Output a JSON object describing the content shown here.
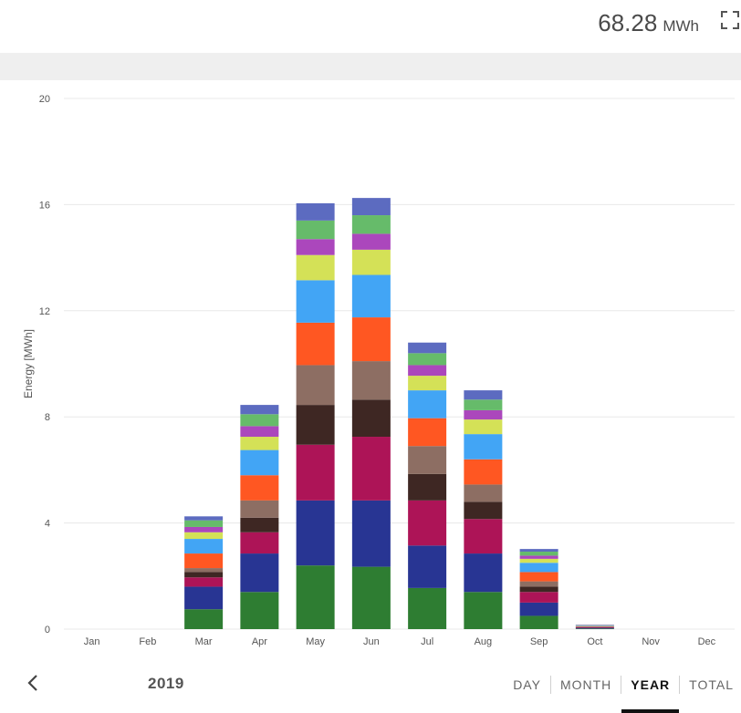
{
  "header": {
    "total_value": "68.28",
    "total_unit": "MWh"
  },
  "icons": {
    "fullscreen": "fullscreen-icon",
    "back": "chevron-left-icon"
  },
  "footer": {
    "year": "2019",
    "tabs": [
      {
        "label": "DAY",
        "active": false
      },
      {
        "label": "MONTH",
        "active": false
      },
      {
        "label": "YEAR",
        "active": true
      },
      {
        "label": "TOTAL",
        "active": false
      }
    ]
  },
  "chart_data": {
    "type": "bar",
    "stacked": true,
    "ylabel": "Energy [MWh]",
    "ylim": [
      0,
      20
    ],
    "yticks": [
      0,
      4,
      8,
      12,
      16,
      20
    ],
    "grid": true,
    "categories": [
      "Jan",
      "Feb",
      "Mar",
      "Apr",
      "May",
      "Jun",
      "Jul",
      "Aug",
      "Sep",
      "Oct",
      "Nov",
      "Dec"
    ],
    "series": [
      {
        "color": "#2e7d32",
        "values": [
          0,
          0,
          0.75,
          1.4,
          2.4,
          2.35,
          1.55,
          1.4,
          0.5,
          0.02,
          0,
          0
        ]
      },
      {
        "color": "#283593",
        "values": [
          0,
          0,
          0.85,
          1.45,
          2.45,
          2.5,
          1.6,
          1.45,
          0.5,
          0.03,
          0,
          0
        ]
      },
      {
        "color": "#ad1457",
        "values": [
          0,
          0,
          0.35,
          0.8,
          2.1,
          2.4,
          1.7,
          1.3,
          0.4,
          0.02,
          0,
          0
        ]
      },
      {
        "color": "#3e2723",
        "values": [
          0,
          0,
          0.2,
          0.55,
          1.5,
          1.4,
          1.0,
          0.65,
          0.2,
          0.01,
          0,
          0
        ]
      },
      {
        "color": "#8d6e63",
        "values": [
          0,
          0,
          0.15,
          0.65,
          1.5,
          1.45,
          1.05,
          0.65,
          0.2,
          0.01,
          0,
          0
        ]
      },
      {
        "color": "#ff5722",
        "values": [
          0,
          0,
          0.55,
          0.95,
          1.6,
          1.65,
          1.05,
          0.95,
          0.35,
          0.02,
          0,
          0
        ]
      },
      {
        "color": "#42a5f5",
        "values": [
          0,
          0,
          0.55,
          0.95,
          1.6,
          1.6,
          1.05,
          0.95,
          0.35,
          0.02,
          0,
          0
        ]
      },
      {
        "color": "#d4e157",
        "values": [
          0,
          0,
          0.25,
          0.5,
          0.95,
          0.95,
          0.55,
          0.55,
          0.15,
          0.01,
          0,
          0
        ]
      },
      {
        "color": "#ab47bc",
        "values": [
          0,
          0,
          0.2,
          0.4,
          0.6,
          0.6,
          0.4,
          0.35,
          0.12,
          0.01,
          0,
          0
        ]
      },
      {
        "color": "#66bb6a",
        "values": [
          0,
          0,
          0.25,
          0.45,
          0.7,
          0.7,
          0.45,
          0.4,
          0.15,
          0.01,
          0,
          0
        ]
      },
      {
        "color": "#5c6bc0",
        "values": [
          0,
          0,
          0.15,
          0.35,
          0.65,
          0.65,
          0.4,
          0.35,
          0.1,
          0.01,
          0,
          0
        ]
      }
    ]
  }
}
